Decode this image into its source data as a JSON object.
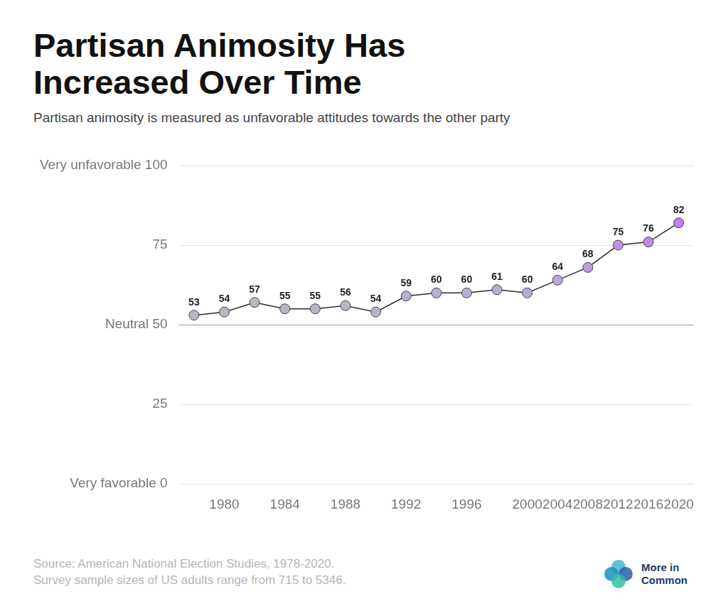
{
  "chart_data": {
    "type": "line",
    "title": "Partisan Animosity Has Increased Over Time",
    "subtitle": "Partisan animosity is measured as unfavorable attitudes towards the other party",
    "notes": [
      "Source: American National Election Studies, 1978-2020.",
      "Survey sample sizes of US adults range from 715 to 5346."
    ],
    "brand": "More in Common",
    "categories": [
      null,
      "1980",
      null,
      "1984",
      null,
      "1988",
      null,
      "1992",
      null,
      "1996",
      null,
      "2000",
      "2004",
      "2008",
      "2012",
      "2016",
      "2020"
    ],
    "values": [
      53,
      54,
      57,
      55,
      55,
      56,
      54,
      59,
      60,
      60,
      61,
      60,
      64,
      68,
      75,
      76,
      82
    ],
    "color": "#2b2b2b",
    "colors": [
      "#b3b8c2",
      "#b3b8c2",
      "#b4b7c4",
      "#b4b6c6",
      "#b5b5c8",
      "#b5b4ca",
      "#b6b3cc",
      "#b7b1ce",
      "#b8b0d1",
      "#b8aed3",
      "#b9acd6",
      "#baaad8",
      "#bba5dc",
      "#bc9ee0",
      "#bd92e4",
      "#bd8ae6",
      "#bc82e8"
    ],
    "marker": "circle",
    "line_style": "solid",
    "ylim": [
      0,
      100
    ],
    "yticks": [
      {
        "value": 0,
        "label": "Very favorable 0"
      },
      25,
      {
        "value": 50,
        "label": "Neutral 50"
      },
      75,
      {
        "value": 100,
        "label": "Very unfavorable 100"
      }
    ],
    "grid": true,
    "data_labels": true
  }
}
